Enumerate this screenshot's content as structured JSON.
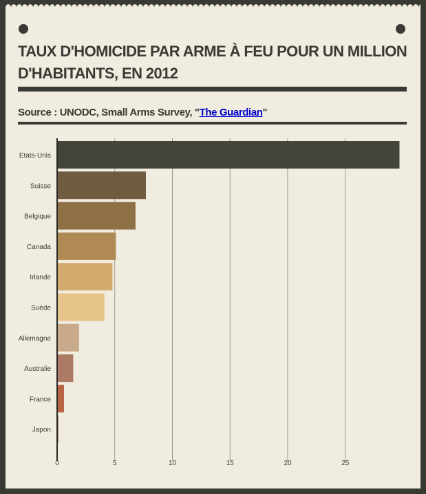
{
  "title": "TAUX D'HOMICIDE PAR ARME À FEU POUR UN MILLION D'HABITANTS, EN 2012",
  "source": {
    "prefix": "Source : UNODC, Small Arms Survey, \"",
    "link_text": "The Guardian",
    "suffix": "\""
  },
  "chart_data": {
    "type": "bar",
    "orientation": "horizontal",
    "title": "TAUX D'HOMICIDE PAR ARME À FEU POUR UN MILLION D'HABITANTS, EN 2012",
    "categories": [
      "Etats-Unis",
      "Suisse",
      "Belgique",
      "Canada",
      "Irlande",
      "Suède",
      "Allemagne",
      "Australie",
      "France",
      "Japon"
    ],
    "values": [
      29.7,
      7.7,
      6.8,
      5.1,
      4.8,
      4.1,
      1.9,
      1.4,
      0.6,
      0.1
    ],
    "colors": [
      "#45443a",
      "#6e5b40",
      "#8e7045",
      "#b08a55",
      "#d2aa6c",
      "#e7c48a",
      "#c9aa8b",
      "#ad7a66",
      "#bb6547",
      "#8a4a30"
    ],
    "xticks": [
      0,
      5,
      10,
      15,
      20,
      25
    ],
    "xlim": [
      0,
      30
    ],
    "grid": true,
    "xlabel": "",
    "ylabel": ""
  }
}
